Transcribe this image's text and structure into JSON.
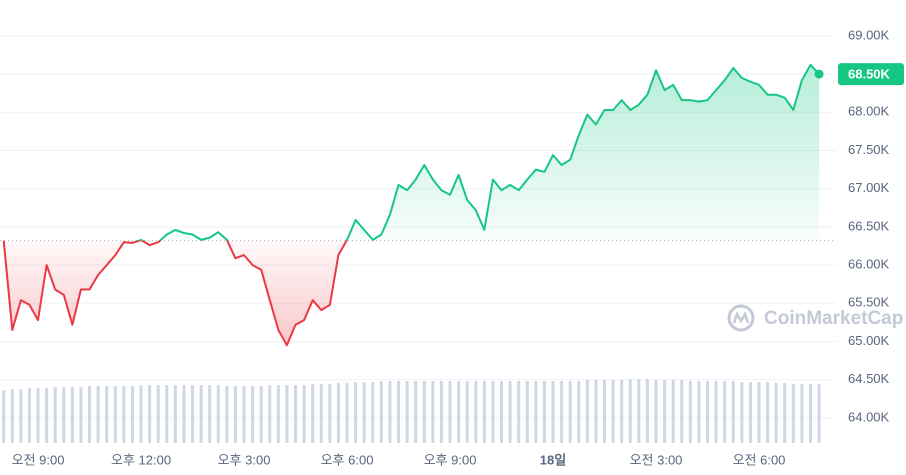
{
  "chart_data": {
    "type": "baseline-line",
    "categories": [
      null,
      null,
      null,
      null,
      "오전 9:00",
      null,
      null,
      null,
      null,
      null,
      null,
      null,
      null,
      null,
      null,
      null,
      "오후 12:00",
      null,
      null,
      null,
      null,
      null,
      null,
      null,
      null,
      null,
      null,
      null,
      "오후 3:00",
      null,
      null,
      null,
      null,
      null,
      null,
      null,
      null,
      null,
      null,
      null,
      "오후 6:00",
      null,
      null,
      null,
      null,
      null,
      null,
      null,
      null,
      null,
      null,
      null,
      "오후 9:00",
      null,
      null,
      null,
      null,
      null,
      null,
      null,
      null,
      null,
      null,
      null,
      "18일",
      null,
      null,
      null,
      null,
      null,
      null,
      null,
      null,
      null,
      null,
      null,
      "오전 3:00",
      null,
      null,
      null,
      null,
      null,
      null,
      null,
      null,
      null,
      null,
      null,
      "오전 6:00",
      null,
      null,
      null,
      null,
      null,
      null,
      null
    ],
    "values": [
      66320,
      65150,
      65540,
      65480,
      65280,
      66000,
      65680,
      65610,
      65220,
      65680,
      65680,
      65870,
      66000,
      66130,
      66300,
      66290,
      66330,
      66260,
      66300,
      66400,
      66460,
      66420,
      66400,
      66330,
      66360,
      66430,
      66330,
      66090,
      66130,
      66000,
      65940,
      65540,
      65150,
      64950,
      65220,
      65280,
      65540,
      65410,
      65480,
      66130,
      66330,
      66590,
      66460,
      66330,
      66400,
      66660,
      67050,
      66980,
      67120,
      67310,
      67120,
      66980,
      66920,
      67180,
      66850,
      66720,
      66460,
      67120,
      66980,
      67050,
      66980,
      67120,
      67250,
      67220,
      67440,
      67310,
      67380,
      67700,
      67970,
      67840,
      68030,
      68030,
      68160,
      68030,
      68100,
      68230,
      68550,
      68290,
      68360,
      68160,
      68160,
      68140,
      68160,
      68290,
      68420,
      68580,
      68450,
      68400,
      68360,
      68230,
      68230,
      68190,
      68030,
      68420,
      68620,
      68500
    ],
    "volume": [
      52,
      53,
      53,
      54,
      54,
      54,
      55,
      55,
      55,
      55,
      56,
      56,
      56,
      56,
      56,
      56,
      57,
      57,
      57,
      57,
      57,
      57,
      57,
      57,
      57,
      57,
      56,
      56,
      56,
      56,
      56,
      57,
      57,
      57,
      57,
      57,
      58,
      58,
      58,
      59,
      59,
      60,
      60,
      60,
      61,
      61,
      61,
      61,
      61,
      61,
      61,
      61,
      61,
      61,
      61,
      61,
      61,
      61,
      61,
      61,
      61,
      61,
      61,
      61,
      61,
      61,
      61,
      61,
      62,
      62,
      62,
      62,
      62,
      63,
      63,
      63,
      62,
      62,
      62,
      62,
      61,
      61,
      61,
      61,
      61,
      61,
      60,
      60,
      60,
      60,
      59,
      59,
      58,
      58,
      58,
      58
    ],
    "last_price_label": "68.50K",
    "up_color": "#16c784",
    "down_color": "#ea3943",
    "volume_color": "#cfd6e4",
    "watermark": "CoinMarketCap",
    "ylim": [
      63710,
      69470
    ],
    "yticks": [
      {
        "value": 64000,
        "label": "64.00K"
      },
      {
        "value": 64500,
        "label": "64.50K"
      },
      {
        "value": 65000,
        "label": "65.00K"
      },
      {
        "value": 65500,
        "label": "65.50K"
      },
      {
        "value": 66000,
        "label": "66.00K"
      },
      {
        "value": 66500,
        "label": "66.50K"
      },
      {
        "value": 67000,
        "label": "67.00K"
      },
      {
        "value": 67500,
        "label": "67.50K"
      },
      {
        "value": 68000,
        "label": "68.00K"
      },
      {
        "value": 68500,
        "label": "68.50K"
      },
      {
        "value": 69000,
        "label": "69.00K"
      }
    ],
    "grid": true
  }
}
